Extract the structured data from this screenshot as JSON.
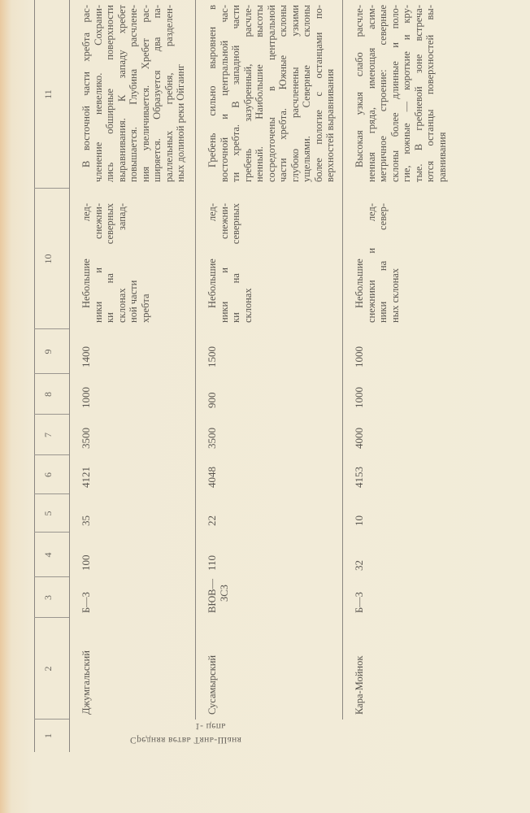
{
  "side_label": {
    "line1": "Средняя ветвь Тянь-Шаня",
    "line2": "1- цепь"
  },
  "header": [
    "1",
    "2",
    "3",
    "4",
    "5",
    "6",
    "7",
    "8",
    "9",
    "10",
    "11"
  ],
  "rows": [
    {
      "name": "Джумгальский",
      "c3": [
        "Б—З"
      ],
      "c4": "100",
      "c5": "35",
      "c6": "4121",
      "c7": "3500",
      "c8": "1000",
      "c9": "1400",
      "c10": [
        "Небольшие лед-",
        "ники и снежни-",
        "ки на северных",
        "склонах запад-",
        "ной части",
        "хребта"
      ],
      "c11": [
        "В восточной части хребта рас-",
        "членение невелико. Сохрани-",
        "лись обширные поверхности",
        "выравнивания. К западу хребет",
        "повышается. Глубина расчлене-",
        "ния увеличивается. Хребет рас-",
        "ширяется. Образуется два па-",
        "раллельных гребня, разделен-",
        "ных долиной реки Ойгаинг"
      ]
    },
    {
      "name": "Сусамырский",
      "c3": [
        "ВЮВ—",
        "ЗСЗ"
      ],
      "c4": "110",
      "c5": "22",
      "c6": "4048",
      "c7": "3500",
      "c8": "900",
      "c9": "1500",
      "c10": [
        "Небольшие лед-",
        "ники и снежни-",
        "ки на северных",
        "склонах"
      ],
      "c11": [
        "Гребень сильно выровнен в",
        "восточной и центральной час-",
        "ти хребта. В западной части",
        "гребень зазубренный, расчле-",
        "ненный. Наибольшие высоты",
        "сосредоточены в центральной",
        "части хребта. Южные склоны",
        "глубоко расчленены узкими",
        "ущельями. Северные склоны",
        "более пологие с останцами по-",
        "верхностей выравнивания"
      ]
    },
    {
      "name": "Кара-Мойнок",
      "c3": [
        "Б—З"
      ],
      "c4": "32",
      "c5": "10",
      "c6": "4153",
      "c7": "4000",
      "c8": "1000",
      "c9": "1000",
      "c10": [
        "Небольшие",
        "снежники и лед-",
        "ники на север-",
        "ных склонах"
      ],
      "c11": [
        "Высокая узкая слабо расчле-",
        "ненная гряда, имеющая асим-",
        "метричное строение: северные",
        "склоны более длинные и поло-",
        "гие, южные — короткие и кру-",
        "тые. В гребневой зоне встреча-",
        "ются останцы поверхностей вы-",
        "равнивания"
      ]
    }
  ]
}
